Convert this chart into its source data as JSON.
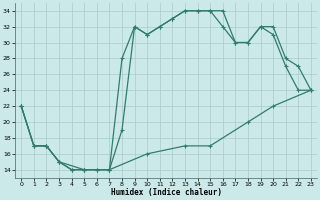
{
  "xlabel": "Humidex (Indice chaleur)",
  "xlim": [
    -0.5,
    23.5
  ],
  "ylim": [
    13,
    35
  ],
  "yticks": [
    14,
    16,
    18,
    20,
    22,
    24,
    26,
    28,
    30,
    32,
    34
  ],
  "xticks": [
    0,
    1,
    2,
    3,
    4,
    5,
    6,
    7,
    8,
    9,
    10,
    11,
    12,
    13,
    14,
    15,
    16,
    17,
    18,
    19,
    20,
    21,
    22,
    23
  ],
  "bg_color": "#cce9e9",
  "grid_color": "#aacccc",
  "line_color": "#2e7d6e",
  "line1_x": [
    0,
    1,
    2,
    3,
    4,
    5,
    6,
    7,
    8,
    9,
    10,
    11,
    12,
    13,
    14,
    15,
    16,
    17,
    18,
    19,
    20,
    21,
    22,
    23
  ],
  "line1_y": [
    22,
    17,
    17,
    15,
    14,
    14,
    14,
    14,
    19,
    32,
    31,
    32,
    33,
    34,
    34,
    34,
    34,
    30,
    30,
    32,
    32,
    28,
    27,
    24
  ],
  "line2_x": [
    0,
    1,
    2,
    3,
    4,
    5,
    6,
    7,
    8,
    9,
    10,
    11,
    12,
    13,
    14,
    15,
    16,
    17,
    18,
    19,
    20,
    21,
    22,
    23
  ],
  "line2_y": [
    22,
    17,
    17,
    15,
    14,
    14,
    14,
    14,
    28,
    32,
    31,
    32,
    33,
    34,
    34,
    34,
    32,
    30,
    30,
    32,
    31,
    27,
    24,
    24
  ],
  "line3_x": [
    0,
    1,
    2,
    3,
    5,
    7,
    10,
    13,
    15,
    18,
    20,
    23
  ],
  "line3_y": [
    22,
    17,
    17,
    15,
    14,
    14,
    16,
    17,
    17,
    20,
    22,
    24
  ]
}
